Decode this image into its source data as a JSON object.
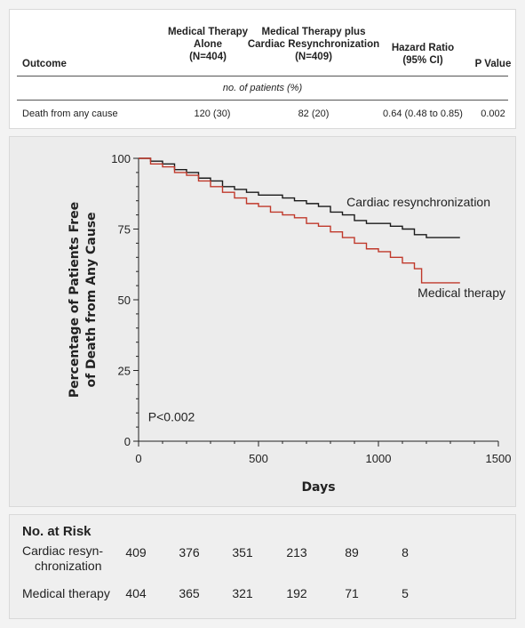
{
  "table": {
    "headers": {
      "outcome": "Outcome",
      "med_line1": "Medical Therapy",
      "med_line2": "Alone",
      "med_line3": "(N=404)",
      "crt_line1": "Medical Therapy plus",
      "crt_line2": "Cardiac Resynchronization",
      "crt_line3": "(N=409)",
      "hr_line1": "Hazard Ratio",
      "hr_line2": "(95% CI)",
      "p": "P Value"
    },
    "subheader": "no. of patients (%)",
    "row": {
      "outcome": "Death from any cause",
      "med": "120 (30)",
      "crt": "82 (20)",
      "hr": "0.64 (0.48 to 0.85)",
      "p": "0.002"
    }
  },
  "chart_data": {
    "type": "line",
    "xlabel": "Days",
    "ylabel_line1": "Percentage of Patients Free",
    "ylabel_line2": "of Death from Any Cause",
    "xlim": [
      0,
      1500
    ],
    "ylim": [
      0,
      100
    ],
    "x_ticks": [
      "0",
      "500",
      "1000",
      "1500"
    ],
    "y_ticks": [
      "0",
      "25",
      "50",
      "75",
      "100"
    ],
    "annotation": "P<0.002",
    "series": [
      {
        "name": "Cardiac resynchronization",
        "color": "#1a1a1a",
        "x": [
          0,
          50,
          100,
          150,
          200,
          250,
          300,
          350,
          400,
          450,
          500,
          550,
          600,
          650,
          700,
          750,
          800,
          850,
          900,
          950,
          1000,
          1050,
          1100,
          1150,
          1200,
          1250,
          1340
        ],
        "y": [
          100,
          99,
          98,
          96,
          95,
          93,
          92,
          90,
          89,
          88,
          87,
          87,
          86,
          85,
          84,
          83,
          81,
          80,
          78,
          77,
          77,
          76,
          75,
          73,
          72,
          72,
          72
        ]
      },
      {
        "name": "Medical therapy",
        "color": "#c0392b",
        "x": [
          0,
          50,
          100,
          150,
          200,
          250,
          300,
          350,
          400,
          450,
          500,
          550,
          600,
          650,
          700,
          750,
          800,
          850,
          900,
          950,
          1000,
          1050,
          1100,
          1150,
          1180,
          1250,
          1340
        ],
        "y": [
          100,
          98,
          97,
          95,
          94,
          92,
          90,
          88,
          86,
          84,
          83,
          81,
          80,
          79,
          77,
          76,
          74,
          72,
          70,
          68,
          67,
          65,
          63,
          61,
          56,
          56,
          56
        ]
      }
    ],
    "labels": [
      "Cardiac resynchronization",
      "Medical therapy"
    ]
  },
  "risk": {
    "title": "No. at Risk",
    "rows": [
      {
        "label_line1": "Cardiac resyn-",
        "label_line2": "chronization",
        "values": [
          "409",
          "376",
          "351",
          "213",
          "89",
          "8"
        ]
      },
      {
        "label_line1": "Medical therapy",
        "label_line2": "",
        "values": [
          "404",
          "365",
          "321",
          "192",
          "71",
          "5"
        ]
      }
    ]
  }
}
